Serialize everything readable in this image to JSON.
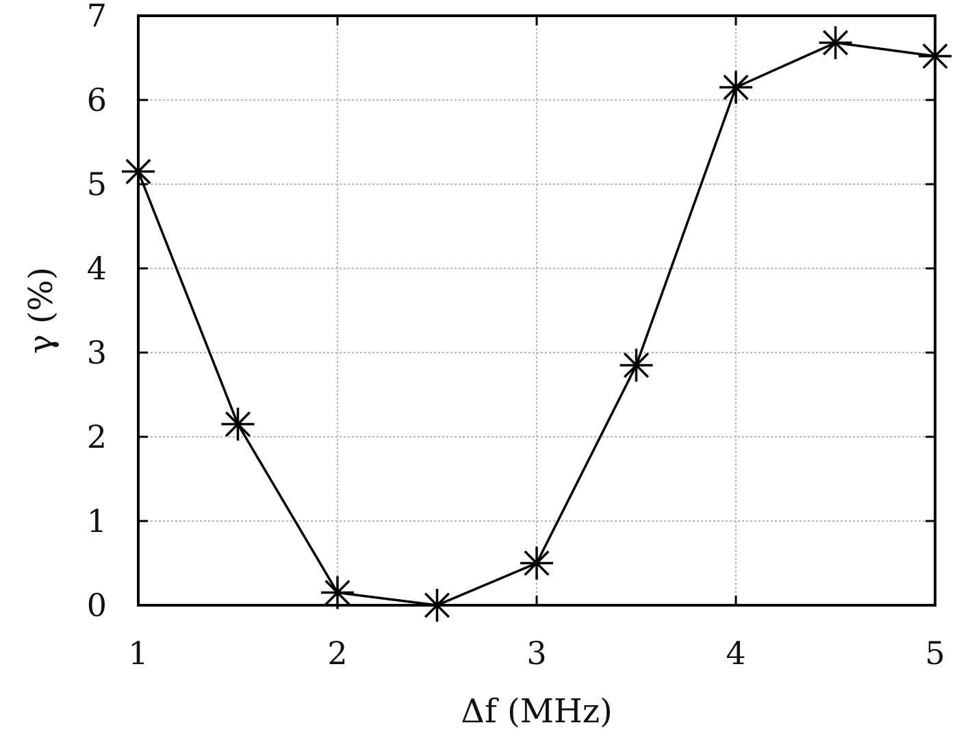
{
  "chart_data": {
    "type": "line",
    "xlabel": "Δf (MHz)",
    "ylabel": "γ (%)",
    "xlim": [
      1,
      5
    ],
    "ylim": [
      0,
      7
    ],
    "xticks": [
      "1",
      "2",
      "3",
      "4",
      "5"
    ],
    "yticks": [
      "0",
      "1",
      "2",
      "3",
      "4",
      "5",
      "6",
      "7"
    ],
    "grid": true,
    "marker": "asterisk",
    "series": [
      {
        "x": [
          1,
          1.5,
          2,
          2.5,
          3,
          3.5,
          4,
          4.5,
          5
        ],
        "y": [
          5.15,
          2.15,
          0.15,
          0.0,
          0.5,
          2.85,
          6.15,
          6.68,
          6.52
        ]
      }
    ]
  }
}
